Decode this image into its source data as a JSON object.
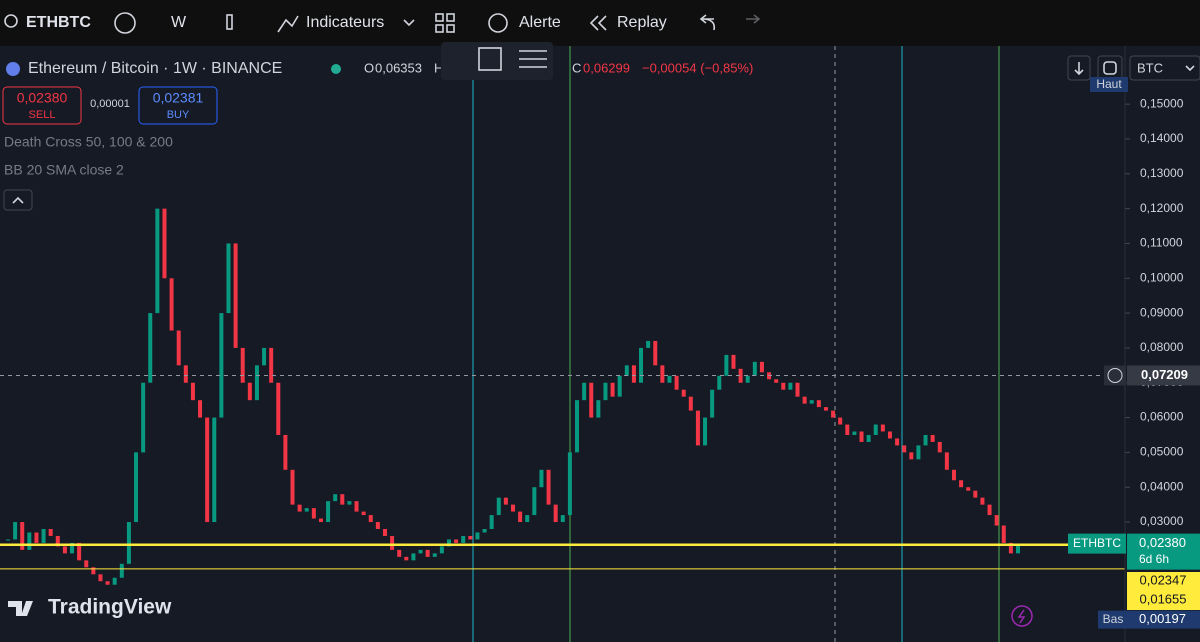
{
  "toolbar": {
    "symbol": "ETHBTC",
    "interval": "W",
    "indicators": "Indicateurs",
    "alert": "Alerte",
    "replay": "Replay"
  },
  "legend": {
    "title": "Ethereum / Bitcoin · 1W · BINANCE",
    "open_key": "O",
    "open": "0,06353",
    "high_key": "H",
    "close_key": "C",
    "close": "0,06299",
    "change": "−0,00054 (−0,85%)"
  },
  "trade": {
    "sell_price": "0,02380",
    "sell": "SELL",
    "spread": "0,00001",
    "buy_price": "0,02381",
    "buy": "BUY"
  },
  "indicators": [
    "Death Cross 50, 100 & 200",
    "BB 20 SMA close 2"
  ],
  "axis_controls": {
    "currency": "BTC",
    "high": "Haut",
    "low": "Bas"
  },
  "brand": "TradingView",
  "chart_data": {
    "type": "candlestick",
    "values": [
      0.025,
      0.03,
      0.022,
      0.027,
      0.024,
      0.028,
      0.026,
      0.023,
      0.021,
      0.024,
      0.019,
      0.017,
      0.015,
      0.013,
      0.012,
      0.014,
      0.018,
      0.03,
      0.05,
      0.07,
      0.09,
      0.12,
      0.1,
      0.085,
      0.075,
      0.07,
      0.065,
      0.06,
      0.03,
      0.06,
      0.09,
      0.11,
      0.08,
      0.07,
      0.065,
      0.075,
      0.08,
      0.07,
      0.055,
      0.045,
      0.035,
      0.033,
      0.034,
      0.031,
      0.03,
      0.036,
      0.038,
      0.035,
      0.036,
      0.033,
      0.032,
      0.03,
      0.028,
      0.026,
      0.022,
      0.02,
      0.019,
      0.021,
      0.022,
      0.02,
      0.021,
      0.023,
      0.025,
      0.024,
      0.026,
      0.025,
      0.027,
      0.028,
      0.032,
      0.037,
      0.035,
      0.033,
      0.03,
      0.032,
      0.04,
      0.045,
      0.035,
      0.03,
      0.032,
      0.05,
      0.065,
      0.07,
      0.06,
      0.065,
      0.07,
      0.066,
      0.072,
      0.075,
      0.07,
      0.08,
      0.082,
      0.075,
      0.07,
      0.072,
      0.068,
      0.066,
      0.062,
      0.052,
      0.06,
      0.068,
      0.072,
      0.078,
      0.074,
      0.07,
      0.072,
      0.076,
      0.073,
      0.071,
      0.07,
      0.068,
      0.07,
      0.066,
      0.064,
      0.065,
      0.063,
      0.062,
      0.06,
      0.058,
      0.055,
      0.056,
      0.053,
      0.055,
      0.058,
      0.056,
      0.054,
      0.052,
      0.05,
      0.048,
      0.052,
      0.055,
      0.053,
      0.05,
      0.045,
      0.042,
      0.04,
      0.039,
      0.037,
      0.035,
      0.032,
      0.029,
      0.024,
      0.021,
      0.0238
    ],
    "up_color": "#089981",
    "down_color": "#f23645",
    "ylim": [
      -0.00445,
      0.1667
    ],
    "yticks": [
      {
        "value": 0.03,
        "label": "0,03000"
      },
      {
        "value": 0.04,
        "label": "0,04000"
      },
      {
        "value": 0.05,
        "label": "0,05000"
      },
      {
        "value": 0.06,
        "label": "0,06000"
      },
      {
        "value": 0.07,
        "label": "0,07000"
      },
      {
        "value": 0.08,
        "label": "0,08000"
      },
      {
        "value": 0.09,
        "label": "0,09000"
      },
      {
        "value": 0.1,
        "label": "0,10000"
      },
      {
        "value": 0.11,
        "label": "0,11000"
      },
      {
        "value": 0.12,
        "label": "0,12000"
      },
      {
        "value": 0.13,
        "label": "0,13000"
      },
      {
        "value": 0.14,
        "label": "0,14000"
      },
      {
        "value": 0.15,
        "label": "0,15000"
      }
    ],
    "last": {
      "symbol": "ETHBTC",
      "value": 0.0238,
      "label": "0,02380",
      "countdown": "6d 6h"
    },
    "levels": [
      {
        "value": 0.02347,
        "label": "0,02347",
        "color": "#ffeb3b"
      },
      {
        "value": 0.01655,
        "label": "0,01655",
        "color": "#ffeb3b"
      }
    ],
    "crosshair": {
      "value": 0.07209,
      "label": "0,07209"
    },
    "low": {
      "value": 0.00197,
      "label": "0,00197"
    }
  }
}
